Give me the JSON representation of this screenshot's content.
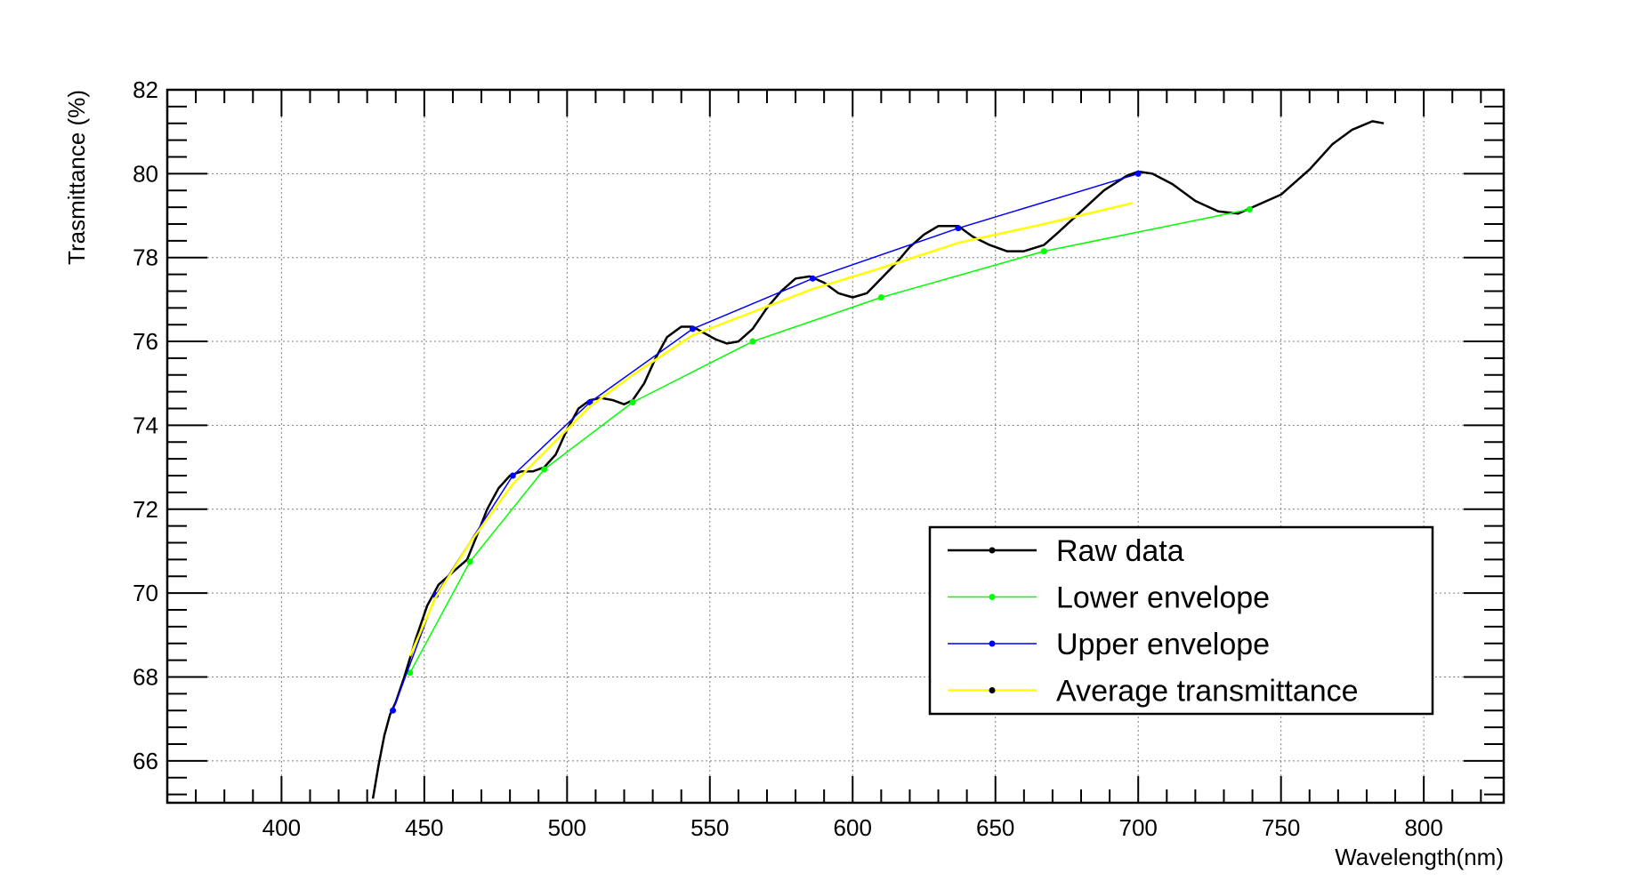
{
  "chart_data": {
    "type": "line",
    "xlabel": "Wavelength(nm)",
    "ylabel": "Trasmittance (%)",
    "xlim": [
      360,
      828
    ],
    "ylim": [
      65,
      82
    ],
    "x_ticks": [
      400,
      450,
      500,
      550,
      600,
      650,
      700,
      750,
      800
    ],
    "y_ticks": [
      66,
      68,
      70,
      72,
      74,
      76,
      78,
      80,
      82
    ],
    "grid": true,
    "legend_position": "bottom-right",
    "colors": {
      "raw": "#000000",
      "lower": "#00ff00",
      "upper": "#0000ff",
      "average": "#ffff00"
    },
    "series": [
      {
        "name": "Raw data",
        "key": "raw",
        "markers": false,
        "x": [
          432,
          434,
          436,
          438,
          440,
          443,
          447,
          451,
          455,
          460,
          465,
          468,
          472,
          476,
          480,
          484,
          488,
          492,
          496,
          500,
          504,
          508,
          512,
          516,
          520,
          523,
          527,
          531,
          535,
          540,
          544,
          548,
          552,
          556,
          560,
          565,
          570,
          575,
          580,
          585,
          590,
          595,
          600,
          605,
          610,
          615,
          620,
          625,
          630,
          637,
          642,
          648,
          654,
          660,
          667,
          672,
          680,
          688,
          696,
          700,
          705,
          712,
          720,
          728,
          735,
          740,
          750,
          760,
          768,
          775,
          782,
          786
        ],
        "y": [
          65.1,
          65.9,
          66.6,
          67.1,
          67.4,
          68.0,
          68.9,
          69.7,
          70.2,
          70.5,
          70.8,
          71.3,
          72.0,
          72.5,
          72.8,
          72.9,
          72.9,
          73.0,
          73.3,
          73.9,
          74.4,
          74.6,
          74.65,
          74.6,
          74.5,
          74.6,
          75.0,
          75.6,
          76.1,
          76.35,
          76.35,
          76.2,
          76.05,
          75.95,
          76.0,
          76.3,
          76.8,
          77.2,
          77.5,
          77.55,
          77.4,
          77.15,
          77.05,
          77.15,
          77.5,
          77.85,
          78.25,
          78.55,
          78.75,
          78.75,
          78.5,
          78.3,
          78.15,
          78.15,
          78.3,
          78.6,
          79.1,
          79.6,
          79.95,
          80.05,
          80.0,
          79.75,
          79.35,
          79.1,
          79.05,
          79.2,
          79.5,
          80.1,
          80.7,
          81.05,
          81.25,
          81.2
        ]
      },
      {
        "name": "Lower envelope",
        "key": "lower",
        "markers": true,
        "x": [
          445,
          466,
          492,
          523,
          565,
          610,
          667,
          739
        ],
        "y": [
          68.1,
          70.75,
          72.95,
          74.55,
          76.0,
          77.05,
          78.15,
          79.15
        ]
      },
      {
        "name": "Upper envelope",
        "key": "upper",
        "markers": true,
        "x": [
          439,
          454,
          481,
          508,
          544,
          586,
          637,
          700
        ],
        "y": [
          67.2,
          69.95,
          72.8,
          74.55,
          76.3,
          77.5,
          78.7,
          80.0
        ]
      },
      {
        "name": "Average transmittance",
        "key": "average",
        "markers": false,
        "x": [
          445,
          454,
          466,
          481,
          492,
          508,
          523,
          544,
          565,
          586,
          610,
          637,
          667,
          698
        ],
        "y": [
          68.5,
          69.9,
          71.2,
          72.6,
          73.35,
          74.45,
          75.2,
          76.15,
          76.7,
          77.25,
          77.75,
          78.35,
          78.8,
          79.3
        ]
      }
    ]
  }
}
